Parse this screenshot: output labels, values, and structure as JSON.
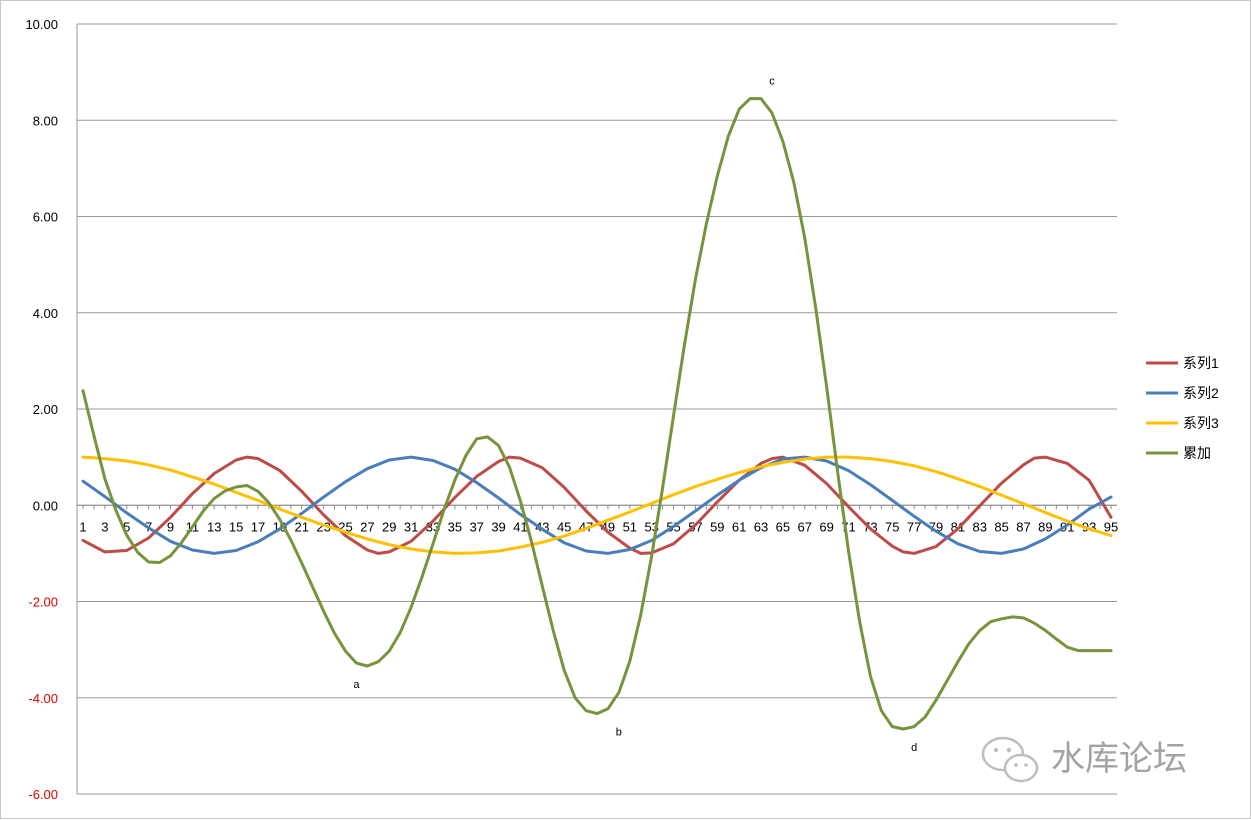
{
  "chart_data": {
    "type": "line",
    "title": "",
    "xlabel": "",
    "ylabel": "",
    "ylim": [
      -6,
      10
    ],
    "ytick_values": [
      10,
      8,
      6,
      4,
      2,
      0,
      -2,
      -4,
      -6
    ],
    "ytick_labels": [
      "10.00",
      "8.00",
      "6.00",
      "4.00",
      "2.00",
      "0.00",
      "-2.00",
      "-4.00",
      "-6.00"
    ],
    "negative_tick_color": "#e00000",
    "xlim": [
      1,
      95
    ],
    "xtick_values": [
      1,
      3,
      5,
      7,
      9,
      11,
      13,
      15,
      17,
      19,
      21,
      23,
      25,
      27,
      29,
      31,
      33,
      35,
      37,
      39,
      41,
      43,
      45,
      47,
      49,
      51,
      53,
      55,
      57,
      59,
      61,
      63,
      65,
      67,
      69,
      71,
      73,
      75,
      77,
      79,
      81,
      83,
      85,
      87,
      89,
      91,
      93,
      95
    ],
    "xtick_labels": [
      "1",
      "3",
      "5",
      "7",
      "9",
      "11",
      "13",
      "15",
      "17",
      "19",
      "21",
      "23",
      "25",
      "27",
      "29",
      "31",
      "33",
      "35",
      "37",
      "39",
      "41",
      "43",
      "45",
      "47",
      "49",
      "51",
      "53",
      "55",
      "57",
      "59",
      "61",
      "63",
      "65",
      "67",
      "69",
      "71",
      "73",
      "75",
      "77",
      "79",
      "81",
      "83",
      "85",
      "87",
      "89",
      "91",
      "93",
      "95"
    ],
    "grid": true,
    "legend_position": "right",
    "series": [
      {
        "name": "系列1",
        "color": "#be4b48",
        "x": [
          1,
          3,
          5,
          7,
          9,
          11,
          13,
          15,
          16,
          17,
          19,
          21,
          23,
          25,
          27,
          28,
          29,
          31,
          33,
          35,
          37,
          39,
          40,
          41,
          43,
          45,
          47,
          49,
          51,
          52,
          53,
          55,
          57,
          59,
          61,
          63,
          64,
          65,
          67,
          69,
          71,
          73,
          75,
          76,
          77,
          79,
          81,
          83,
          85,
          87,
          88,
          89,
          91,
          93,
          95
        ],
        "y": [
          -0.73,
          -0.97,
          -0.94,
          -0.68,
          -0.25,
          0.24,
          0.66,
          0.94,
          1.0,
          0.97,
          0.72,
          0.29,
          -0.2,
          -0.63,
          -0.93,
          -1.0,
          -0.97,
          -0.75,
          -0.33,
          0.16,
          0.6,
          0.91,
          1.0,
          0.98,
          0.78,
          0.37,
          -0.12,
          -0.56,
          -0.89,
          -1.0,
          -0.99,
          -0.8,
          -0.41,
          0.07,
          0.52,
          0.87,
          0.97,
          1.0,
          0.83,
          0.45,
          -0.03,
          -0.49,
          -0.85,
          -0.97,
          -1.0,
          -0.86,
          -0.49,
          -0.01,
          0.46,
          0.84,
          0.98,
          1.0,
          0.87,
          0.52,
          -0.25
        ]
      },
      {
        "name": "系列2",
        "color": "#4a7ebb",
        "x": [
          1,
          3,
          5,
          7,
          9,
          11,
          13,
          15,
          17,
          19,
          21,
          23,
          25,
          27,
          29,
          31,
          33,
          35,
          37,
          39,
          41,
          43,
          45,
          47,
          49,
          51,
          53,
          55,
          57,
          59,
          61,
          63,
          65,
          67,
          69,
          71,
          73,
          75,
          77,
          79,
          81,
          83,
          85,
          87,
          89,
          91,
          93,
          95
        ],
        "y": [
          0.5,
          0.18,
          -0.16,
          -0.47,
          -0.75,
          -0.93,
          -1.0,
          -0.94,
          -0.76,
          -0.49,
          -0.17,
          0.17,
          0.49,
          0.76,
          0.94,
          1.0,
          0.93,
          0.75,
          0.47,
          0.15,
          -0.19,
          -0.5,
          -0.78,
          -0.95,
          -1.0,
          -0.92,
          -0.73,
          -0.44,
          -0.12,
          0.21,
          0.52,
          0.78,
          0.96,
          1.0,
          0.92,
          0.72,
          0.43,
          0.1,
          -0.23,
          -0.54,
          -0.8,
          -0.96,
          -1.0,
          -0.91,
          -0.7,
          -0.41,
          -0.08,
          0.17
        ]
      },
      {
        "name": "系列3",
        "color": "#ffc000",
        "x": [
          1,
          3,
          5,
          7,
          9,
          11,
          13,
          15,
          17,
          19,
          21,
          23,
          25,
          27,
          29,
          31,
          33,
          35,
          37,
          39,
          41,
          43,
          45,
          47,
          49,
          51,
          53,
          55,
          57,
          59,
          61,
          63,
          65,
          67,
          69,
          71,
          73,
          75,
          77,
          79,
          81,
          83,
          85,
          87,
          89,
          91,
          93,
          95
        ],
        "y": [
          1.0,
          0.97,
          0.92,
          0.84,
          0.73,
          0.59,
          0.44,
          0.27,
          0.1,
          -0.08,
          -0.25,
          -0.41,
          -0.56,
          -0.7,
          -0.82,
          -0.91,
          -0.97,
          -1.0,
          -0.99,
          -0.95,
          -0.87,
          -0.77,
          -0.64,
          -0.48,
          -0.31,
          -0.14,
          0.04,
          0.22,
          0.39,
          0.54,
          0.68,
          0.8,
          0.89,
          0.96,
          1.0,
          1.0,
          0.97,
          0.91,
          0.82,
          0.7,
          0.55,
          0.39,
          0.21,
          0.03,
          -0.15,
          -0.33,
          -0.49,
          -0.63
        ]
      },
      {
        "name": "累加",
        "color": "#77933c",
        "x": [
          1,
          2,
          3,
          4,
          5,
          6,
          7,
          8,
          9,
          10,
          11,
          12,
          13,
          14,
          15,
          16,
          17,
          18,
          19,
          20,
          21,
          22,
          23,
          24,
          25,
          26,
          27,
          28,
          29,
          30,
          31,
          32,
          33,
          34,
          35,
          36,
          37,
          38,
          39,
          40,
          41,
          42,
          43,
          44,
          45,
          46,
          47,
          48,
          49,
          50,
          51,
          52,
          53,
          54,
          55,
          56,
          57,
          58,
          59,
          60,
          61,
          62,
          63,
          64,
          65,
          66,
          67,
          68,
          69,
          70,
          71,
          72,
          73,
          74,
          75,
          76,
          77,
          78,
          79,
          80,
          81,
          82,
          83,
          84,
          85,
          86,
          87,
          88,
          89,
          90,
          91,
          92,
          93,
          94,
          95
        ],
        "y": [
          2.38,
          1.45,
          0.55,
          -0.1,
          -0.62,
          -0.98,
          -1.18,
          -1.19,
          -1.05,
          -0.78,
          -0.45,
          -0.12,
          0.14,
          0.3,
          0.38,
          0.41,
          0.29,
          0.05,
          -0.3,
          -0.72,
          -1.2,
          -1.7,
          -2.2,
          -2.66,
          -3.03,
          -3.28,
          -3.34,
          -3.25,
          -3.03,
          -2.65,
          -2.12,
          -1.49,
          -0.8,
          -0.1,
          0.52,
          1.03,
          1.38,
          1.42,
          1.24,
          0.79,
          0.09,
          -0.75,
          -1.68,
          -2.61,
          -3.43,
          -4.0,
          -4.27,
          -4.33,
          -4.23,
          -3.89,
          -3.24,
          -2.28,
          -1.05,
          0.36,
          1.87,
          3.34,
          4.69,
          5.85,
          6.84,
          7.66,
          8.23,
          8.45,
          8.45,
          8.15,
          7.56,
          6.7,
          5.55,
          4.1,
          2.45,
          0.7,
          -0.95,
          -2.4,
          -3.55,
          -4.27,
          -4.6,
          -4.65,
          -4.6,
          -4.4,
          -4.05,
          -3.65,
          -3.25,
          -2.88,
          -2.6,
          -2.42,
          -2.36,
          -2.32,
          -2.34,
          -2.45,
          -2.6,
          -2.78,
          -2.95,
          -3.02,
          -3.02,
          -3.02,
          -3.02
        ]
      }
    ],
    "annotations": [
      {
        "text": "a",
        "x": 26,
        "y": -3.34
      },
      {
        "text": "b",
        "x": 50,
        "y": -4.33
      },
      {
        "text": "c",
        "x": 64,
        "y": 8.45
      },
      {
        "text": "d",
        "x": 77,
        "y": -4.65
      }
    ]
  },
  "watermark": {
    "text": "水库论坛",
    "icon": "wechat-icon"
  }
}
